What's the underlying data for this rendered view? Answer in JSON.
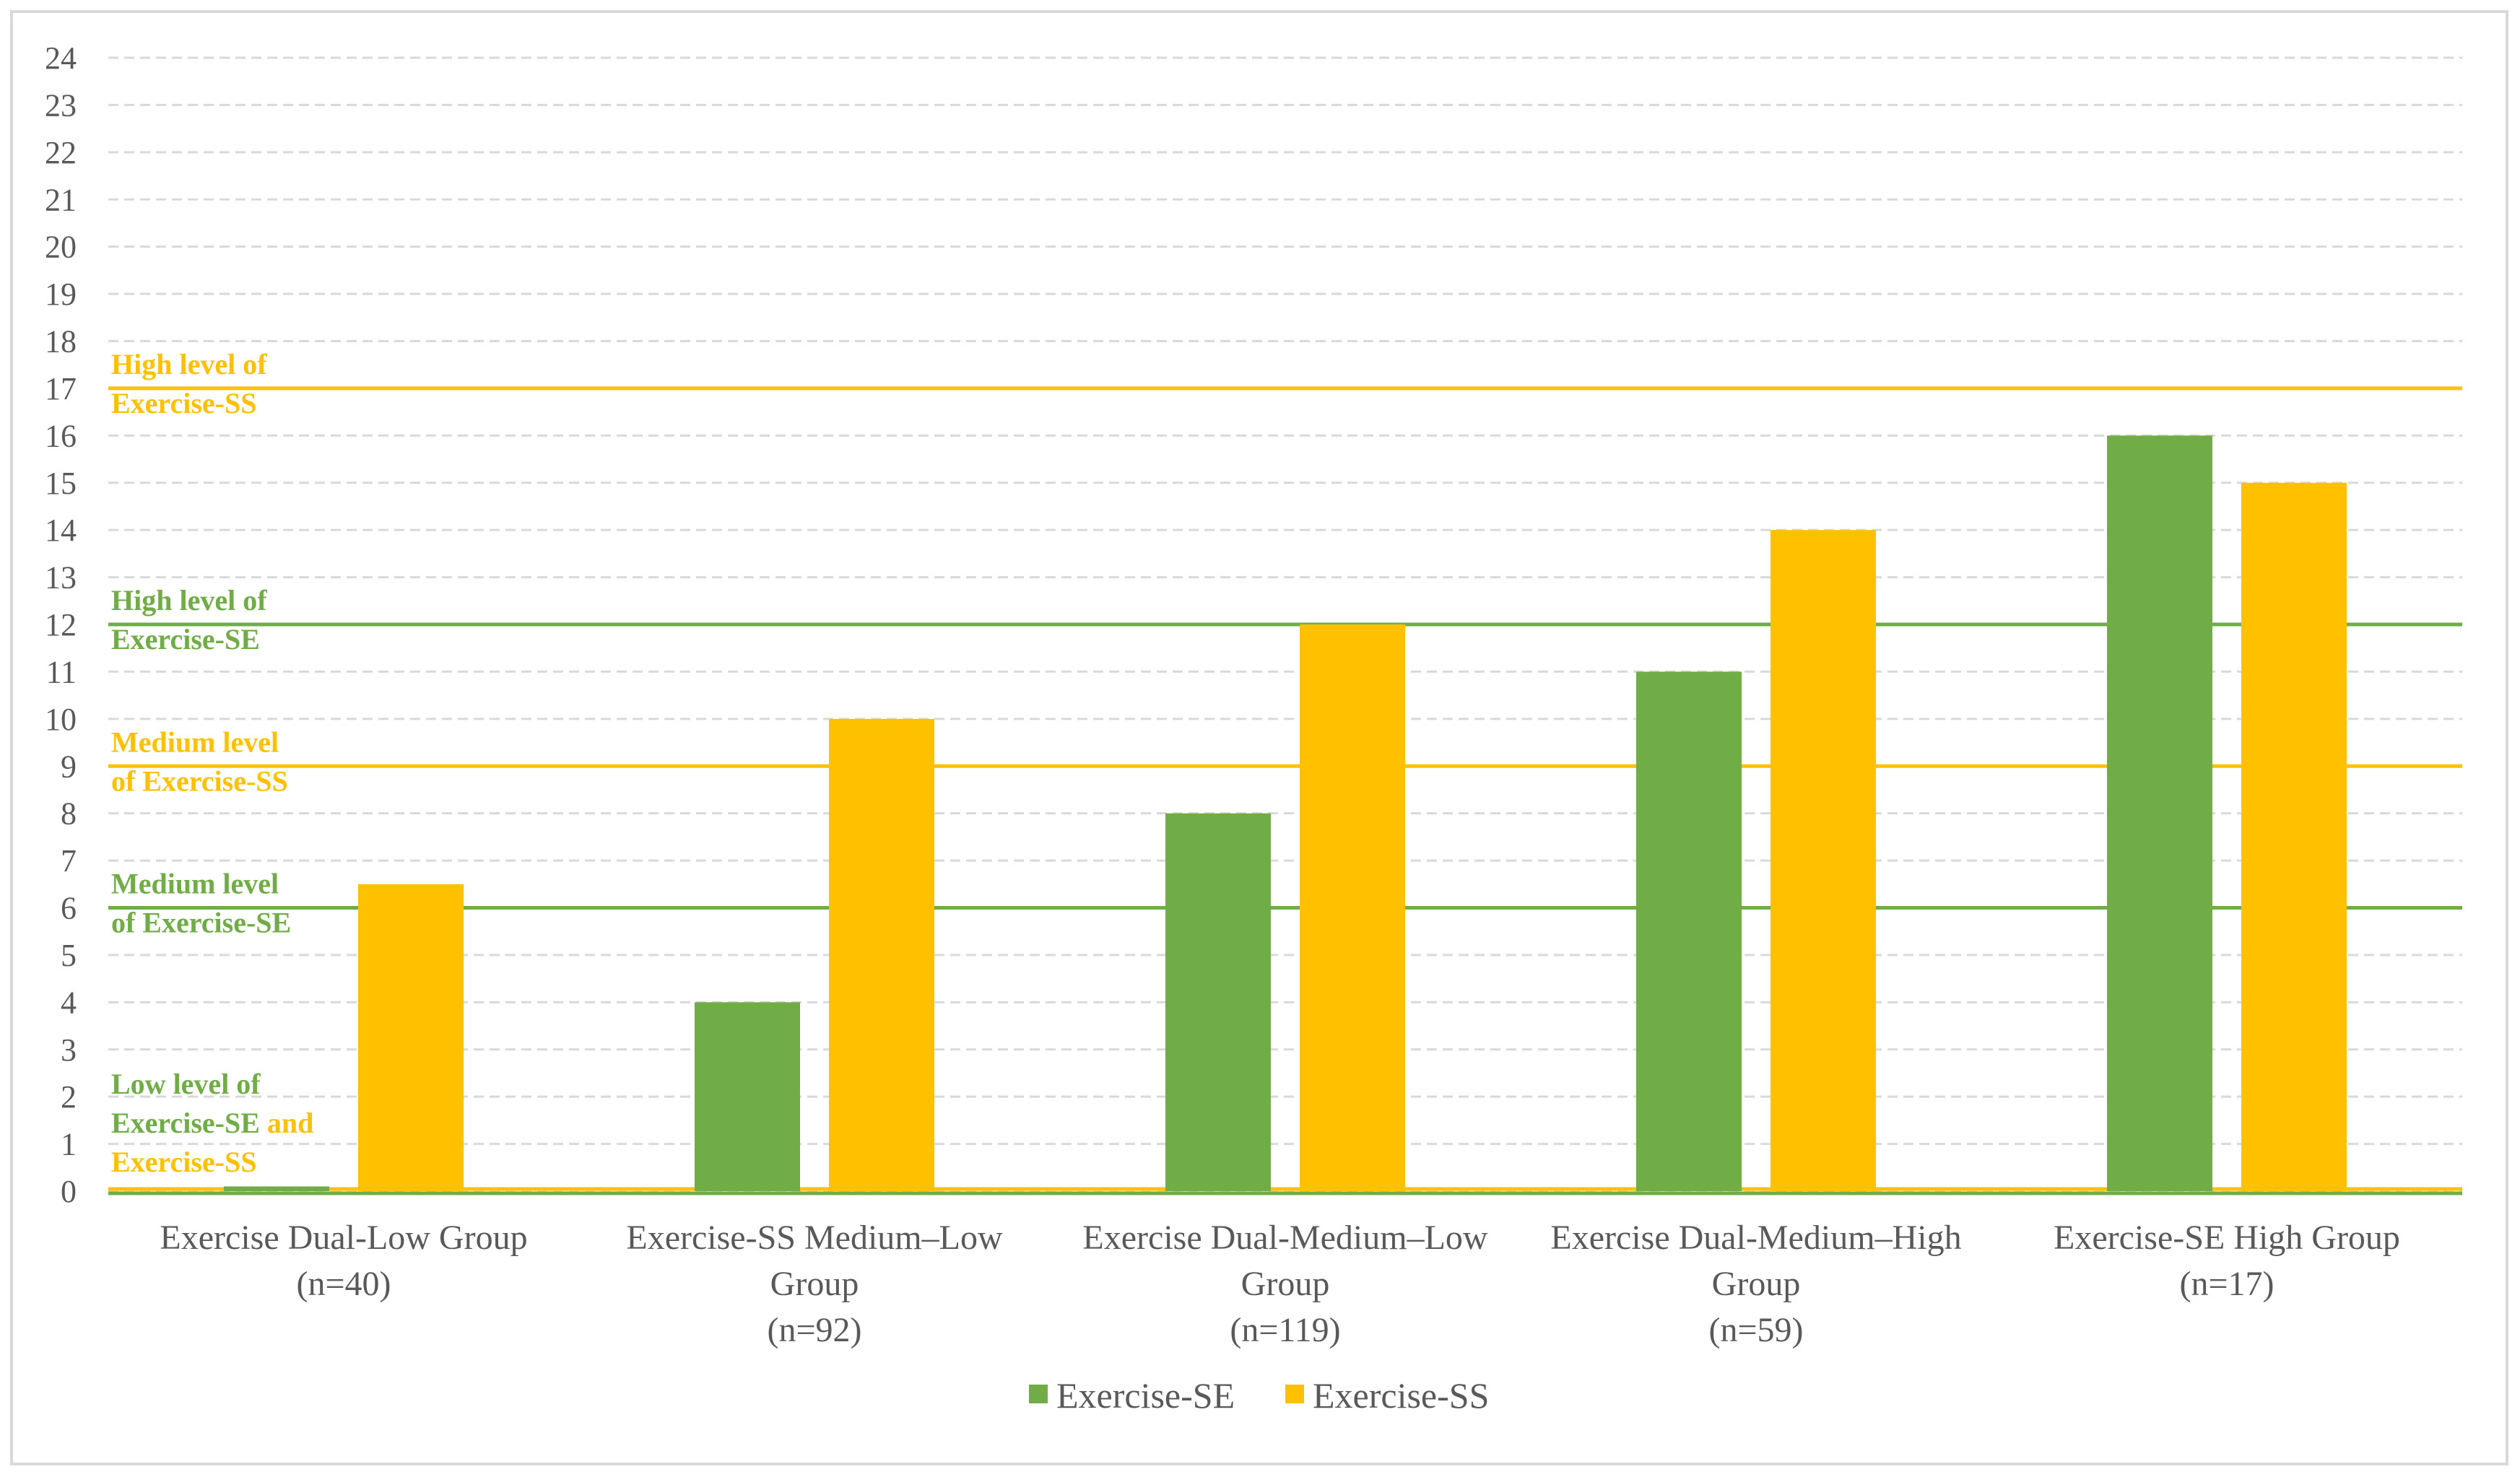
{
  "chart_data": {
    "type": "bar",
    "title": "",
    "xlabel": "",
    "ylabel": "",
    "ylim": [
      0,
      24
    ],
    "yticks": [
      0,
      1,
      2,
      3,
      4,
      5,
      6,
      7,
      8,
      9,
      10,
      11,
      12,
      13,
      14,
      15,
      16,
      17,
      18,
      19,
      20,
      21,
      22,
      23,
      24
    ],
    "grid": true,
    "legend_position": "bottom",
    "categories": [
      [
        "Exercise Dual-Low Group",
        "(n=40)"
      ],
      [
        "Exercise-SS Medium–Low",
        "Group",
        "(n=92)"
      ],
      [
        "Exercise Dual-Medium–Low",
        "Group",
        "(n=119)"
      ],
      [
        "Exercise Dual-Medium–High",
        "Group",
        "(n=59)"
      ],
      [
        "Exercise-SE High Group",
        "(n=17)"
      ]
    ],
    "series": [
      {
        "name": "Exercise-SE",
        "color": "#70ad47",
        "values": [
          0.1,
          4,
          8,
          11,
          16
        ]
      },
      {
        "name": "Exercise-SS",
        "color": "#ffc000",
        "values": [
          6.5,
          10,
          12,
          14,
          15
        ]
      }
    ],
    "reference_lines": [
      {
        "value": 17,
        "color": "#ffc000",
        "label_parts": [
          {
            "text": "High level of",
            "color": "#ffc000",
            "line": 0
          },
          {
            "text": "Exercise-SS",
            "color": "#ffc000",
            "line": 1
          }
        ]
      },
      {
        "value": 12,
        "color": "#70ad47",
        "label_parts": [
          {
            "text": "High level of",
            "color": "#70ad47",
            "line": 0
          },
          {
            "text": "Exercise-SE",
            "color": "#70ad47",
            "line": 1
          }
        ]
      },
      {
        "value": 9,
        "color": "#ffc000",
        "label_parts": [
          {
            "text": "Medium level",
            "color": "#ffc000",
            "line": 0
          },
          {
            "text": "of Exercise-SS",
            "color": "#ffc000",
            "line": 1
          }
        ]
      },
      {
        "value": 6,
        "color": "#70ad47",
        "label_parts": [
          {
            "text": "Medium level",
            "color": "#70ad47",
            "line": 0
          },
          {
            "text": "of Exercise-SE",
            "color": "#70ad47",
            "line": 1
          }
        ]
      },
      {
        "value": 0,
        "color": "#ffc000",
        "secondary_color": "#70ad47",
        "label_parts": [
          {
            "text": "Low level of",
            "color": "#70ad47",
            "line": 0
          },
          {
            "text": "Exercise-SE",
            "color": "#70ad47",
            "line": 1
          },
          {
            "text": " and",
            "color": "#ffc000",
            "line": 1
          },
          {
            "text": "Exercise-SS",
            "color": "#ffc000",
            "line": 2
          }
        ]
      }
    ]
  }
}
